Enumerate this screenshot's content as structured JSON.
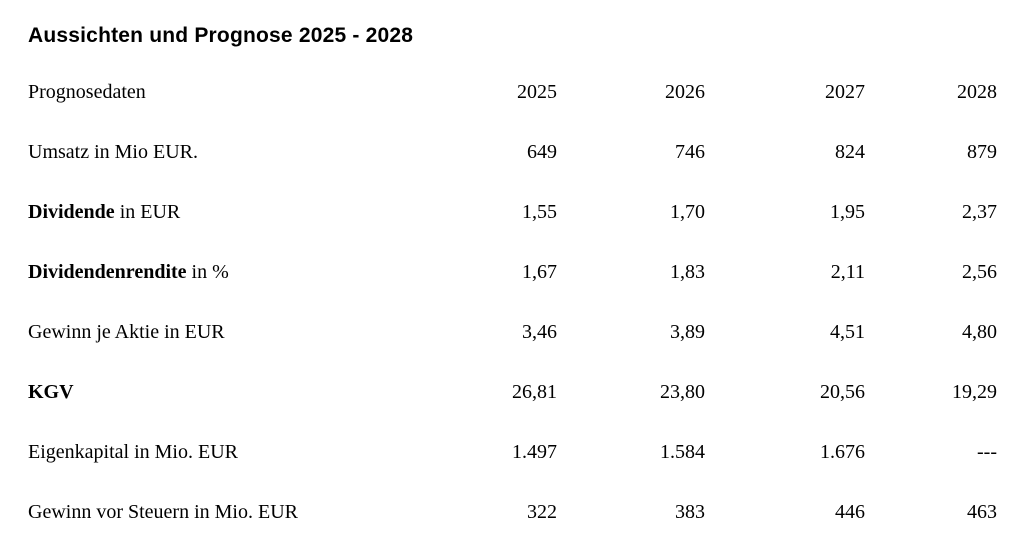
{
  "title": "Aussichten und Prognose 2025 - 2028",
  "table": {
    "header_label": "Prognosedaten",
    "years": [
      "2025",
      "2026",
      "2027",
      "2028"
    ],
    "rows": [
      {
        "label_bold": "",
        "label_rest": "Umsatz in Mio EUR.",
        "values": [
          "649",
          "746",
          "824",
          "879"
        ]
      },
      {
        "label_bold": "Dividende",
        "label_rest": " in EUR",
        "values": [
          "1,55",
          "1,70",
          "1,95",
          "2,37"
        ]
      },
      {
        "label_bold": "Dividendenrendite",
        "label_rest": " in %",
        "values": [
          "1,67",
          "1,83",
          "2,11",
          "2,56"
        ]
      },
      {
        "label_bold": "",
        "label_rest": "Gewinn je Aktie in EUR",
        "values": [
          "3,46",
          "3,89",
          "4,51",
          "4,80"
        ]
      },
      {
        "label_bold": "KGV",
        "label_rest": "",
        "values": [
          "26,81",
          "23,80",
          "20,56",
          "19,29"
        ]
      },
      {
        "label_bold": "",
        "label_rest": "Eigenkapital in Mio. EUR",
        "values": [
          "1.497",
          "1.584",
          "1.676",
          "---"
        ]
      },
      {
        "label_bold": "",
        "label_rest": "Gewinn vor Steuern in Mio. EUR",
        "values": [
          "322",
          "383",
          "446",
          "463"
        ]
      }
    ]
  }
}
